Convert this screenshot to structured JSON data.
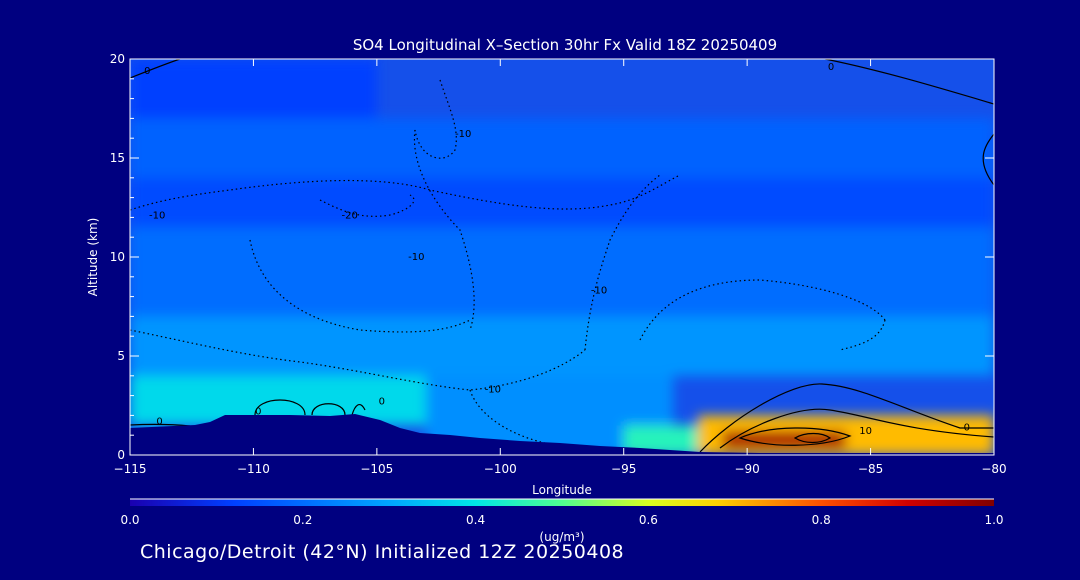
{
  "chart_data": {
    "type": "heatmap",
    "title": "SO4 Longitudinal X–Section 30hr  Fx Valid 18Z 20250409",
    "xlabel": "Longitude",
    "ylabel": "Altitude (km)",
    "xlim": [
      -115,
      -80
    ],
    "ylim": [
      0,
      20
    ],
    "x_ticks": [
      -115,
      -110,
      -105,
      -100,
      -95,
      -90,
      -85,
      -80
    ],
    "y_ticks": [
      0,
      5,
      10,
      15,
      20
    ],
    "colorbar": {
      "label": "(ug/m³)",
      "range": [
        0.0,
        1.0
      ],
      "ticks": [
        "0.0",
        "0.2",
        "0.4",
        "0.6",
        "0.8",
        "1.0"
      ]
    },
    "fields": [
      {
        "x": [
          -115,
          -105
        ],
        "y": [
          17,
          20
        ],
        "value": 0.12
      },
      {
        "x": [
          -115,
          -80
        ],
        "y": [
          14,
          17
        ],
        "value": 0.18
      },
      {
        "x": [
          -115,
          -80
        ],
        "y": [
          11.5,
          14
        ],
        "value": 0.14
      },
      {
        "x": [
          -115,
          -80
        ],
        "y": [
          7,
          11.5
        ],
        "value": 0.2
      },
      {
        "x": [
          -115,
          -80
        ],
        "y": [
          4,
          7
        ],
        "value": 0.27
      },
      {
        "x": [
          -115,
          -103
        ],
        "y": [
          1.5,
          4
        ],
        "value": 0.38
      },
      {
        "x": [
          -103,
          -93
        ],
        "y": [
          0,
          4
        ],
        "value": 0.26
      },
      {
        "x": [
          -95,
          -92
        ],
        "y": [
          0,
          1.5
        ],
        "value": 0.45
      },
      {
        "x": [
          -92,
          -80
        ],
        "y": [
          0,
          2
        ],
        "value": 0.7
      },
      {
        "x": [
          -91,
          -86
        ],
        "y": [
          0.3,
          1.2
        ],
        "value": 0.95
      }
    ],
    "contour_labels": [
      {
        "text": "0",
        "x": -114.3,
        "y": 19.4
      },
      {
        "text": "0",
        "x": -113.8,
        "y": 1.7
      },
      {
        "text": "0",
        "x": -109.8,
        "y": 2.2
      },
      {
        "text": "0",
        "x": -104.8,
        "y": 2.7
      },
      {
        "text": "0",
        "x": -81.1,
        "y": 1.4
      },
      {
        "text": "0",
        "x": -86.6,
        "y": 19.6
      },
      {
        "text": "-10",
        "x": -113.9,
        "y": 12.1
      },
      {
        "text": "-10",
        "x": -103.4,
        "y": 10.0
      },
      {
        "text": "-10",
        "x": -100.3,
        "y": 3.3
      },
      {
        "text": "-10",
        "x": -96.0,
        "y": 8.3
      },
      {
        "text": "-10",
        "x": -101.5,
        "y": 16.2
      },
      {
        "text": "-20",
        "x": -106.1,
        "y": 12.1
      },
      {
        "text": "10",
        "x": -85.2,
        "y": 1.2
      }
    ]
  },
  "caption": "Chicago/Detroit (42°N) Initialized 12Z 20250408"
}
